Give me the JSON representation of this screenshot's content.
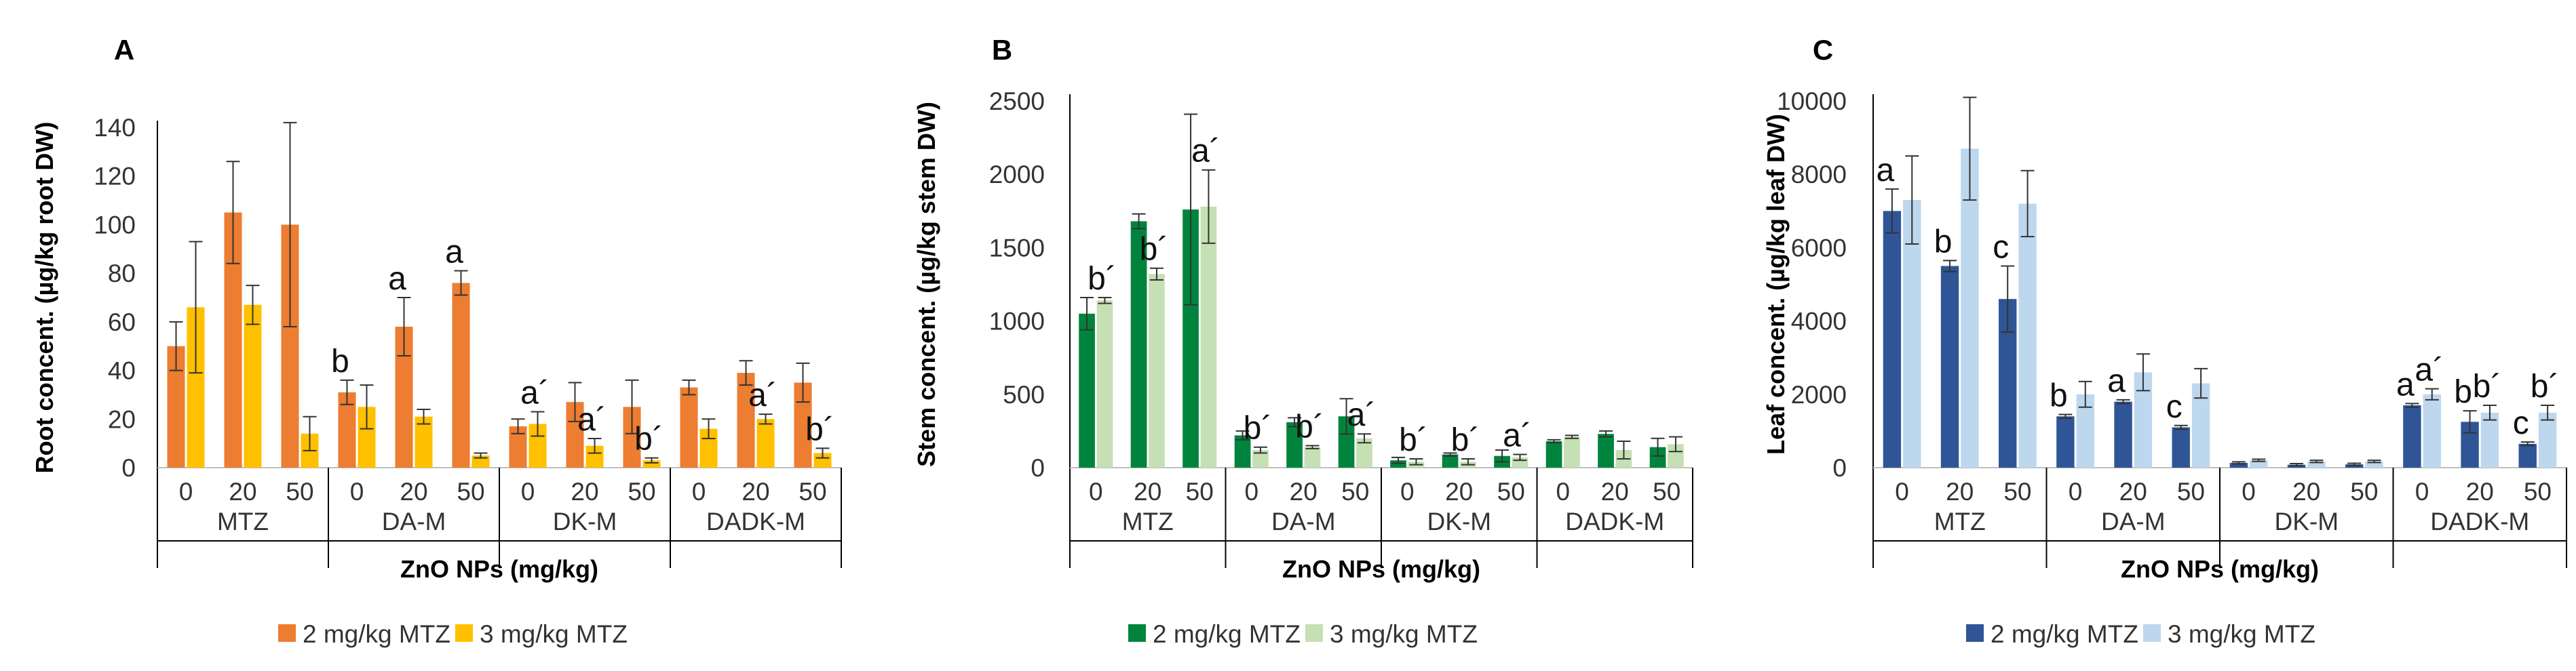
{
  "chart_data": [
    {
      "type": "bar",
      "panel": "A",
      "ylabel": "Root concent. (µg/kg root DW)",
      "xlabel": "ZnO NPs (mg/kg)",
      "ylim": [
        0,
        140
      ],
      "yticks": [
        0,
        20,
        40,
        60,
        80,
        100,
        120,
        140
      ],
      "groups": [
        "MTZ",
        "DA-M",
        "DK-M",
        "DADK-M"
      ],
      "subcategories": [
        "0",
        "20",
        "50"
      ],
      "series": [
        {
          "name": "2 mg/kg MTZ",
          "color": "#ED7D31",
          "values": [
            50,
            105,
            100,
            31,
            58,
            76,
            17,
            27,
            25,
            33,
            39,
            35
          ],
          "errors": [
            10,
            21,
            42,
            5,
            12,
            5,
            3,
            8,
            11,
            3,
            5,
            8
          ],
          "letters": [
            "",
            "",
            "",
            "b",
            "a",
            "a",
            "",
            "",
            "",
            "",
            "",
            ""
          ]
        },
        {
          "name": "3 mg/kg MTZ",
          "color": "#FFC000",
          "values": [
            66,
            67,
            14,
            25,
            21,
            5,
            18,
            9,
            3,
            16,
            20,
            6
          ],
          "errors": [
            27,
            8,
            7,
            9,
            3,
            1,
            5,
            3,
            1,
            4,
            2,
            2
          ],
          "letters": [
            "",
            "",
            "",
            "",
            "",
            "",
            "a´",
            "a´",
            "b´",
            "",
            "a´",
            "b´"
          ]
        }
      ]
    },
    {
      "type": "bar",
      "panel": "B",
      "ylabel": "Stem concent. (µg/kg stem DW)",
      "xlabel": "ZnO NPs (mg/kg)",
      "ylim": [
        0,
        2500
      ],
      "yticks": [
        0,
        500,
        1000,
        1500,
        2000,
        2500
      ],
      "groups": [
        "MTZ",
        "DA-M",
        "DK-M",
        "DADK-M"
      ],
      "subcategories": [
        "0",
        "20",
        "50"
      ],
      "series": [
        {
          "name": "2 mg/kg MTZ",
          "color": "#00843D",
          "values": [
            1050,
            1680,
            1760,
            220,
            310,
            350,
            50,
            90,
            80,
            180,
            230,
            140
          ],
          "errors": [
            110,
            50,
            650,
            30,
            30,
            120,
            20,
            10,
            40,
            10,
            20,
            60
          ],
          "letters": [
            "",
            "",
            "",
            "",
            "",
            "",
            "",
            "",
            "",
            "",
            "",
            ""
          ]
        },
        {
          "name": "3 mg/kg MTZ",
          "color": "#C5E0B4",
          "values": [
            1140,
            1320,
            1780,
            120,
            140,
            200,
            40,
            40,
            70,
            210,
            120,
            160
          ],
          "errors": [
            20,
            40,
            250,
            20,
            10,
            30,
            20,
            20,
            20,
            10,
            60,
            50
          ],
          "letters": [
            "b´",
            "b´",
            "a´",
            "b´",
            "b´",
            "a´",
            "b´",
            "b´",
            "a´",
            "",
            "",
            ""
          ]
        }
      ]
    },
    {
      "type": "bar",
      "panel": "C",
      "ylabel": "Leaf concent. (µg/kg leaf DW)",
      "xlabel": "ZnO NPs (mg/kg)",
      "ylim": [
        0,
        10000
      ],
      "yticks": [
        0,
        2000,
        4000,
        6000,
        8000,
        10000
      ],
      "groups": [
        "MTZ",
        "DA-M",
        "DK-M",
        "DADK-M"
      ],
      "subcategories": [
        "0",
        "20",
        "50"
      ],
      "series": [
        {
          "name": "2 mg/kg MTZ",
          "color": "#2F5597",
          "values": [
            7000,
            5500,
            4600,
            1400,
            1800,
            1100,
            130,
            80,
            90,
            1700,
            1250,
            650
          ],
          "errors": [
            600,
            150,
            900,
            50,
            50,
            50,
            30,
            30,
            30,
            50,
            300,
            50
          ],
          "letters": [
            "a",
            "b",
            "c",
            "b",
            "a",
            "c",
            "",
            "",
            "",
            "a",
            "b",
            "c"
          ]
        },
        {
          "name": "3 mg/kg MTZ",
          "color": "#BDD7EE",
          "values": [
            7300,
            8700,
            7200,
            2000,
            2600,
            2300,
            200,
            170,
            170,
            2000,
            1500,
            1500
          ],
          "errors": [
            1200,
            1400,
            900,
            350,
            500,
            400,
            30,
            30,
            30,
            150,
            200,
            200
          ],
          "letters": [
            "",
            "",
            "",
            "",
            "",
            "",
            "",
            "",
            "",
            "a´",
            "b´",
            "b´"
          ]
        }
      ]
    }
  ]
}
